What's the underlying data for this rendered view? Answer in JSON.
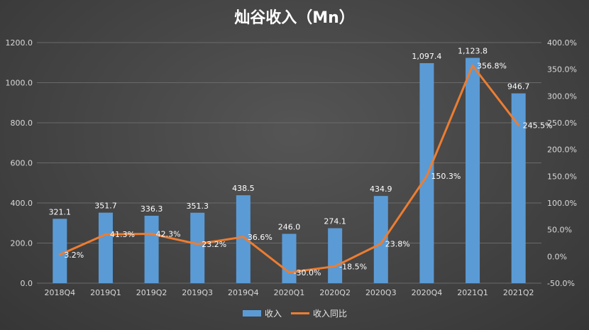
{
  "chart_data": {
    "type": "bar",
    "title": "灿谷收入（Mn）",
    "categories": [
      "2018Q4",
      "2019Q1",
      "2019Q2",
      "2019Q3",
      "2019Q4",
      "2020Q1",
      "2020Q2",
      "2020Q3",
      "2020Q4",
      "2021Q1",
      "2021Q2"
    ],
    "series": [
      {
        "name": "收入",
        "type": "bar",
        "axis": "left",
        "color": "#5b9bd5",
        "values": [
          321.1,
          351.7,
          336.3,
          351.3,
          438.5,
          246.0,
          274.1,
          434.9,
          1097.4,
          1123.8,
          946.7
        ],
        "labels": [
          "321.1",
          "351.7",
          "336.3",
          "351.3",
          "438.5",
          "246.0",
          "274.1",
          "434.9",
          "1,097.4",
          "1,123.8",
          "946.7"
        ]
      },
      {
        "name": "收入同比",
        "type": "line",
        "axis": "right",
        "color": "#ed7d31",
        "values": [
          3.2,
          41.3,
          42.3,
          23.2,
          36.6,
          -30.0,
          -18.5,
          23.8,
          150.3,
          356.8,
          245.5
        ],
        "labels": [
          "3.2%",
          "41.3%",
          "42.3%",
          "23.2%",
          "36.6%",
          "-30.0%",
          "-18.5%",
          "23.8%",
          "150.3%",
          "356.8%",
          "245.5%"
        ]
      }
    ],
    "y_left": {
      "min": 0,
      "max": 1200,
      "step": 200,
      "ticks": [
        "0.0",
        "200.0",
        "400.0",
        "600.0",
        "800.0",
        "1000.0",
        "1200.0"
      ]
    },
    "y_right": {
      "min": -50,
      "max": 400,
      "step": 50,
      "ticks": [
        "-50.0%",
        "0.0%",
        "50.0%",
        "100.0%",
        "150.0%",
        "200.0%",
        "250.0%",
        "300.0%",
        "350.0%",
        "400.0%"
      ]
    },
    "grid": true,
    "legend_position": "bottom"
  }
}
